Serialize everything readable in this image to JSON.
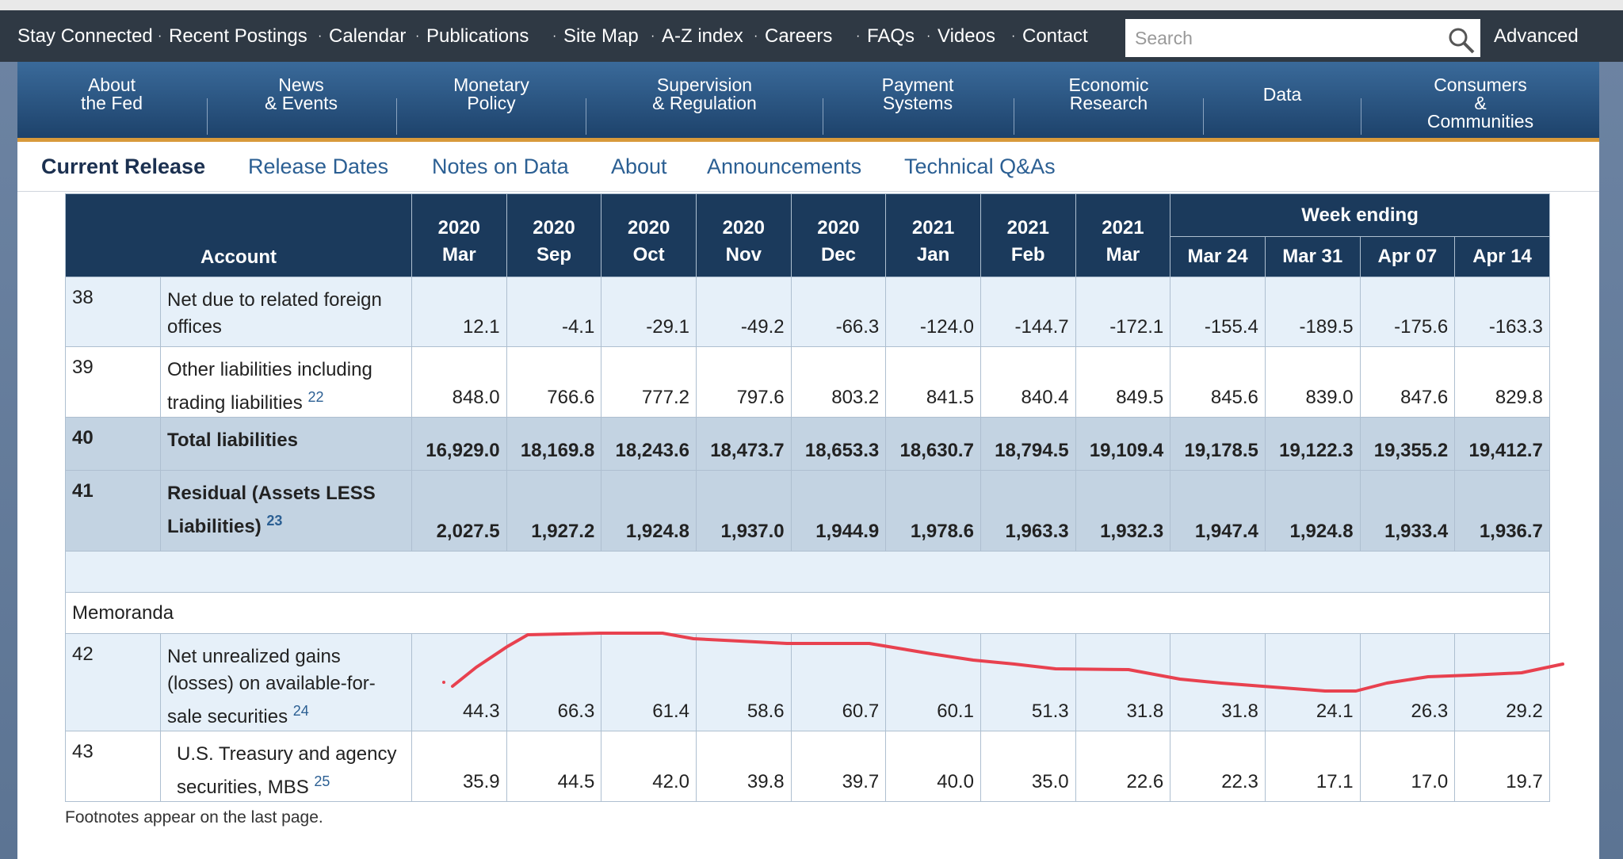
{
  "top_links": [
    "Stay Connected",
    "Recent Postings",
    "Calendar",
    "Publications",
    "Site Map",
    "A-Z index",
    "Careers",
    "FAQs",
    "Videos",
    "Contact"
  ],
  "search_placeholder": "Search",
  "advanced": "Advanced",
  "main_nav": [
    "About\nthe Fed",
    "News\n& Events",
    "Monetary\nPolicy",
    "Supervision\n& Regulation",
    "Payment\nSystems",
    "Economic\nResearch",
    "Data",
    "Consumers\n& Communities"
  ],
  "sub_nav": [
    "Current Release",
    "Release Dates",
    "Notes on Data",
    "About",
    "Announcements",
    "Technical Q&As"
  ],
  "table": {
    "account_header": "Account",
    "columns": [
      "2020\nMar",
      "2020\nSep",
      "2020\nOct",
      "2020\nNov",
      "2020\nDec",
      "2021\nJan",
      "2021\nFeb",
      "2021\nMar"
    ],
    "week_ending": "Week ending",
    "week_columns": [
      "Mar 24",
      "Mar 31",
      "Apr 07",
      "Apr 14"
    ],
    "rows": [
      {
        "num": "38",
        "account": "Net due to related foreign offices",
        "values": [
          "12.1",
          "-4.1",
          "-29.1",
          "-49.2",
          "-66.3",
          "-124.0",
          "-144.7",
          "-172.1",
          "-155.4",
          "-189.5",
          "-175.6",
          "-163.3"
        ]
      },
      {
        "num": "39",
        "account": "Other liabilities including trading liabilities",
        "note": "22",
        "values": [
          "848.0",
          "766.6",
          "777.2",
          "797.6",
          "803.2",
          "841.5",
          "840.4",
          "849.5",
          "845.6",
          "839.0",
          "847.6",
          "829.8"
        ]
      },
      {
        "num": "40",
        "account": "Total liabilities",
        "values": [
          "16,929.0",
          "18,169.8",
          "18,243.6",
          "18,473.7",
          "18,653.3",
          "18,630.7",
          "18,794.5",
          "19,109.4",
          "19,178.5",
          "19,122.3",
          "19,355.2",
          "19,412.7"
        ]
      },
      {
        "num": "41",
        "account": "Residual (Assets LESS Liabilities)",
        "note": "23",
        "values": [
          "2,027.5",
          "1,927.2",
          "1,924.8",
          "1,937.0",
          "1,944.9",
          "1,978.6",
          "1,963.3",
          "1,932.3",
          "1,947.4",
          "1,924.8",
          "1,933.4",
          "1,936.7"
        ]
      }
    ],
    "memoranda": "Memoranda",
    "memo_rows": [
      {
        "num": "42",
        "account": "Net unrealized gains (losses) on available-for-sale securities",
        "note": "24",
        "values": [
          "44.3",
          "66.3",
          "61.4",
          "58.6",
          "60.7",
          "60.1",
          "51.3",
          "31.8",
          "31.8",
          "24.1",
          "26.3",
          "29.2"
        ]
      },
      {
        "num": "43",
        "account": "U.S. Treasury and agency securities, MBS",
        "note": "25",
        "values": [
          "35.9",
          "44.5",
          "42.0",
          "39.8",
          "39.7",
          "40.0",
          "35.0",
          "22.6",
          "22.3",
          "17.1",
          "17.0",
          "19.7"
        ]
      }
    ]
  },
  "footnote": "Footnotes appear on the last page."
}
